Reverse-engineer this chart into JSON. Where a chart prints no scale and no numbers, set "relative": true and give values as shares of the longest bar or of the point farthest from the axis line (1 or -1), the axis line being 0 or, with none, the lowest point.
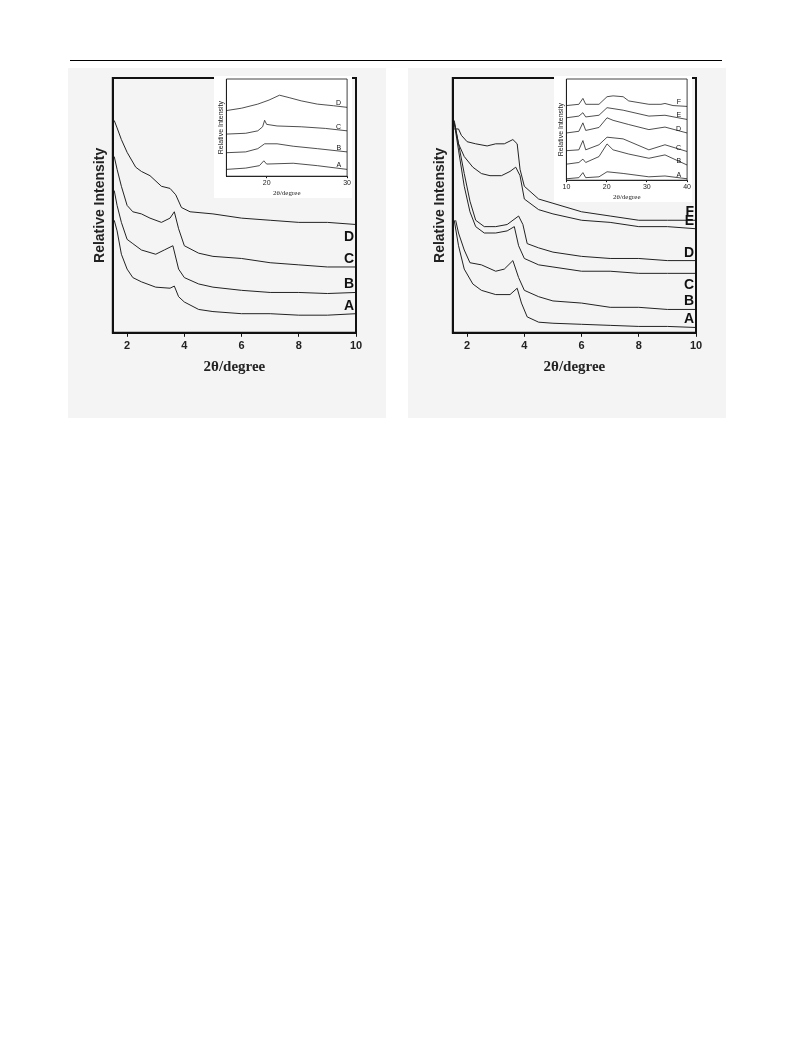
{
  "chart_data": [
    {
      "type": "line",
      "relative": true,
      "xlabel": "2θ/degree",
      "ylabel": "Relative Intensity",
      "xlim": [
        1.5,
        10
      ],
      "xticks": [
        2,
        4,
        6,
        8,
        10
      ],
      "grid": false,
      "legend": false,
      "marker": "none",
      "line_style": "solid",
      "series": [
        {
          "name": "D",
          "color": "#222222",
          "x": [
            1.55,
            1.65,
            1.8,
            2.0,
            2.3,
            2.5,
            2.8,
            3.2,
            3.5,
            3.7,
            3.9,
            4.2,
            5,
            6,
            7,
            8,
            9,
            10
          ],
          "values": [
            1.0,
            0.965,
            0.91,
            0.85,
            0.78,
            0.76,
            0.74,
            0.69,
            0.68,
            0.65,
            0.59,
            0.57,
            0.56,
            0.54,
            0.53,
            0.52,
            0.52,
            0.51
          ]
        },
        {
          "name": "C",
          "color": "#222222",
          "x": [
            1.55,
            1.65,
            1.8,
            2.0,
            2.2,
            2.5,
            2.8,
            3.2,
            3.5,
            3.65,
            3.8,
            4.0,
            4.5,
            5,
            6,
            7,
            8,
            9,
            10
          ],
          "values": [
            0.83,
            0.77,
            0.69,
            0.6,
            0.57,
            0.56,
            0.54,
            0.52,
            0.54,
            0.57,
            0.49,
            0.41,
            0.375,
            0.36,
            0.35,
            0.33,
            0.32,
            0.31,
            0.31
          ]
        },
        {
          "name": "B",
          "color": "#222222",
          "x": [
            1.55,
            1.65,
            1.8,
            2.0,
            2.2,
            2.5,
            3.0,
            3.3,
            3.6,
            3.8,
            4.0,
            4.5,
            5,
            6,
            7,
            8,
            9,
            10
          ],
          "values": [
            0.67,
            0.6,
            0.52,
            0.44,
            0.42,
            0.39,
            0.37,
            0.39,
            0.41,
            0.3,
            0.26,
            0.23,
            0.215,
            0.2,
            0.19,
            0.19,
            0.185,
            0.19
          ]
        },
        {
          "name": "A",
          "color": "#222222",
          "x": [
            1.55,
            1.65,
            1.8,
            2.0,
            2.2,
            2.5,
            3.0,
            3.5,
            3.65,
            3.8,
            4.0,
            4.5,
            5,
            6,
            7,
            8,
            9,
            10
          ],
          "values": [
            0.53,
            0.48,
            0.37,
            0.3,
            0.26,
            0.24,
            0.215,
            0.21,
            0.22,
            0.17,
            0.145,
            0.11,
            0.1,
            0.09,
            0.09,
            0.083,
            0.083,
            0.09
          ]
        }
      ]
    },
    {
      "type": "line",
      "relative": true,
      "xlabel": "2θ/degree",
      "ylabel": "Relative Intensity",
      "xlim": [
        15,
        30
      ],
      "xticks": [
        20,
        30
      ],
      "grid": false,
      "legend": false,
      "marker": "none",
      "line_style": "solid",
      "series": [
        {
          "name": "D",
          "color": "#222222",
          "x": [
            15,
            16.9,
            18.9,
            20.3,
            21.6,
            22.8,
            24.3,
            26.3,
            28.3,
            30
          ],
          "values": [
            0.81,
            0.84,
            0.89,
            0.94,
            1.0,
            0.97,
            0.93,
            0.89,
            0.87,
            0.85
          ]
        },
        {
          "name": "C",
          "color": "#222222",
          "x": [
            15,
            17.4,
            18.9,
            19.5,
            19.75,
            20,
            21.3,
            24.3,
            27.3,
            30
          ],
          "values": [
            0.52,
            0.53,
            0.56,
            0.61,
            0.69,
            0.64,
            0.62,
            0.61,
            0.59,
            0.56
          ]
        },
        {
          "name": "B",
          "color": "#222222",
          "x": [
            15,
            17.4,
            18.9,
            19.75,
            21.3,
            23.3,
            26.3,
            30
          ],
          "values": [
            0.29,
            0.3,
            0.34,
            0.4,
            0.4,
            0.37,
            0.34,
            0.3
          ]
        },
        {
          "name": "A",
          "color": "#222222",
          "x": [
            15,
            17.4,
            19.1,
            19.65,
            20,
            23.3,
            26.3,
            30
          ],
          "values": [
            0.084,
            0.1,
            0.13,
            0.19,
            0.15,
            0.16,
            0.13,
            0.084
          ]
        }
      ]
    },
    {
      "type": "line",
      "relative": true,
      "xlabel": "2θ/degree",
      "ylabel": "Relative Intensity",
      "xlim": [
        1.5,
        10
      ],
      "xticks": [
        2,
        4,
        6,
        8,
        10
      ],
      "grid": false,
      "legend": false,
      "marker": "none",
      "line_style": "solid",
      "series": [
        {
          "name": "F",
          "color": "#222222",
          "x": [
            1.55,
            1.7,
            1.8,
            2.0,
            2.3,
            2.7,
            3.0,
            3.3,
            3.6,
            3.75,
            3.85,
            4.0,
            4.5,
            5,
            6,
            7,
            8,
            9,
            10
          ],
          "values": [
            0.96,
            0.96,
            0.93,
            0.9,
            0.89,
            0.88,
            0.89,
            0.89,
            0.91,
            0.89,
            0.77,
            0.69,
            0.63,
            0.61,
            0.57,
            0.55,
            0.53,
            0.53,
            0.53
          ]
        },
        {
          "name": "E",
          "color": "#222222",
          "x": [
            1.55,
            1.7,
            1.9,
            2.2,
            2.5,
            2.8,
            3.2,
            3.5,
            3.7,
            3.85,
            4.0,
            4.5,
            5,
            6,
            7,
            8,
            9,
            10
          ],
          "values": [
            0.99,
            0.89,
            0.83,
            0.78,
            0.75,
            0.74,
            0.74,
            0.76,
            0.78,
            0.74,
            0.63,
            0.58,
            0.56,
            0.53,
            0.52,
            0.5,
            0.5,
            0.49
          ]
        },
        {
          "name": "D",
          "color": "#222222",
          "x": [
            1.55,
            1.7,
            1.9,
            2.1,
            2.3,
            2.6,
            3.0,
            3.4,
            3.8,
            3.95,
            4.1,
            4.5,
            5,
            6,
            7,
            8,
            9,
            10
          ],
          "values": [
            1.0,
            0.89,
            0.75,
            0.62,
            0.53,
            0.5,
            0.5,
            0.51,
            0.55,
            0.51,
            0.42,
            0.4,
            0.38,
            0.36,
            0.35,
            0.35,
            0.34,
            0.34
          ]
        },
        {
          "name": "C",
          "color": "#222222",
          "x": [
            1.55,
            1.7,
            1.9,
            2.1,
            2.3,
            2.6,
            3.0,
            3.4,
            3.65,
            3.8,
            4.0,
            4.5,
            5,
            6,
            7,
            8,
            9,
            10
          ],
          "values": [
            0.99,
            0.86,
            0.69,
            0.57,
            0.5,
            0.47,
            0.47,
            0.48,
            0.5,
            0.41,
            0.35,
            0.32,
            0.31,
            0.29,
            0.29,
            0.28,
            0.28,
            0.28
          ]
        },
        {
          "name": "B",
          "color": "#222222",
          "x": [
            1.6,
            1.7,
            1.9,
            2.1,
            2.5,
            3.0,
            3.3,
            3.6,
            3.8,
            4.0,
            4.5,
            5,
            6,
            7,
            8,
            9,
            10
          ],
          "values": [
            0.53,
            0.47,
            0.39,
            0.33,
            0.32,
            0.29,
            0.3,
            0.34,
            0.26,
            0.2,
            0.17,
            0.15,
            0.14,
            0.12,
            0.12,
            0.11,
            0.11
          ]
        },
        {
          "name": "A",
          "color": "#222222",
          "x": [
            1.55,
            1.7,
            1.9,
            2.2,
            2.5,
            3.0,
            3.5,
            3.75,
            3.9,
            4.1,
            4.5,
            5,
            6,
            7,
            8,
            9,
            10
          ],
          "values": [
            0.53,
            0.41,
            0.3,
            0.23,
            0.2,
            0.18,
            0.18,
            0.21,
            0.14,
            0.075,
            0.05,
            0.045,
            0.04,
            0.035,
            0.03,
            0.03,
            0.025
          ]
        }
      ]
    },
    {
      "type": "line",
      "relative": true,
      "xlabel": "2θ/degree",
      "ylabel": "Relative Intensity",
      "xlim": [
        10,
        40
      ],
      "xticks": [
        10,
        20,
        30,
        40
      ],
      "grid": false,
      "legend": false,
      "marker": "none",
      "line_style": "solid",
      "series": [
        {
          "name": "F",
          "color": "#222222",
          "x": [
            10,
            13.1,
            14.1,
            14.8,
            18.1,
            20.1,
            21.6,
            24.1,
            25.5,
            30.5,
            33.5,
            34.5,
            36.5,
            40
          ],
          "values": [
            0.885,
            0.9,
            0.97,
            0.9,
            0.9,
            0.99,
            1.0,
            0.99,
            0.94,
            0.9,
            0.9,
            0.91,
            0.885,
            0.875
          ]
        },
        {
          "name": "E",
          "color": "#222222",
          "x": [
            10,
            13.1,
            14.1,
            14.8,
            18.1,
            20.1,
            24.1,
            30.5,
            34.5,
            40
          ],
          "values": [
            0.74,
            0.76,
            0.8,
            0.75,
            0.77,
            0.86,
            0.83,
            0.76,
            0.77,
            0.72
          ]
        },
        {
          "name": "D",
          "color": "#222222",
          "x": [
            10,
            13.1,
            14.1,
            14.8,
            18.1,
            20.1,
            21.6,
            25.5,
            30.5,
            34.5,
            40
          ],
          "values": [
            0.56,
            0.58,
            0.68,
            0.59,
            0.625,
            0.74,
            0.71,
            0.66,
            0.6,
            0.63,
            0.56
          ]
        },
        {
          "name": "C",
          "color": "#222222",
          "x": [
            10,
            13.1,
            14.1,
            14.8,
            18.1,
            20.1,
            24.1,
            30.5,
            34.5,
            40
          ],
          "values": [
            0.35,
            0.36,
            0.47,
            0.36,
            0.42,
            0.51,
            0.49,
            0.36,
            0.42,
            0.34
          ]
        },
        {
          "name": "B",
          "color": "#222222",
          "x": [
            10,
            13.1,
            14.1,
            14.8,
            18.1,
            20.1,
            21.6,
            25.5,
            30.5,
            34.5,
            40
          ],
          "values": [
            0.19,
            0.21,
            0.25,
            0.21,
            0.28,
            0.43,
            0.36,
            0.31,
            0.26,
            0.3,
            0.18
          ]
        },
        {
          "name": "A",
          "color": "#222222",
          "x": [
            10,
            13.1,
            14.1,
            14.8,
            18.1,
            20.1,
            24.1,
            30.5,
            34.5,
            40
          ],
          "values": [
            0.017,
            0.03,
            0.09,
            0.03,
            0.04,
            0.1,
            0.08,
            0.04,
            0.05,
            0.017
          ]
        }
      ]
    }
  ]
}
